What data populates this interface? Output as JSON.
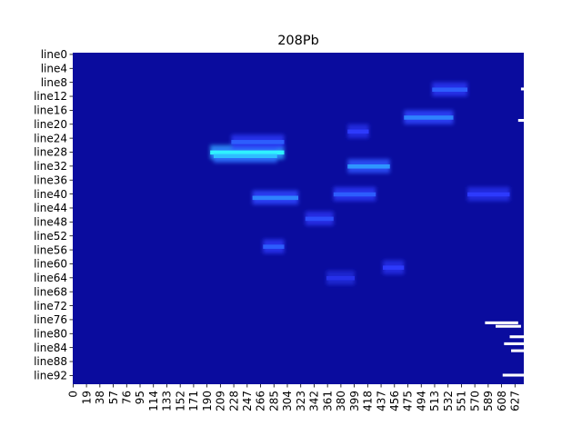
{
  "chart_data": {
    "type": "heatmap",
    "title": "208Pb",
    "xlabel": "",
    "ylabel": "",
    "colors": {
      "background": "#0a0c9e",
      "low": "#0a0c9e",
      "mid": "#2f3cff",
      "high": "#30ffff",
      "missing": "#ffffff"
    },
    "columns": 640,
    "rows": 95,
    "xlim": [
      0,
      640
    ],
    "ylim": [
      0,
      95
    ],
    "x_tick_labels": [
      "0",
      "19",
      "38",
      "57",
      "76",
      "95",
      "114",
      "133",
      "152",
      "171",
      "190",
      "209",
      "228",
      "247",
      "266",
      "285",
      "304",
      "323",
      "342",
      "361",
      "380",
      "399",
      "418",
      "437",
      "456",
      "475",
      "494",
      "513",
      "532",
      "551",
      "570",
      "589",
      "608",
      "627"
    ],
    "y_tick_labels": [
      "line0",
      "line4",
      "line8",
      "line12",
      "line16",
      "line20",
      "line24",
      "line28",
      "line32",
      "line36",
      "line40",
      "line44",
      "line48",
      "line52",
      "line56",
      "line60",
      "line64",
      "line68",
      "line72",
      "line76",
      "line80",
      "line84",
      "line88",
      "line92"
    ],
    "intensity_regions": [
      {
        "line": 28,
        "x": [
          195,
          300
        ],
        "intensity": 1.0
      },
      {
        "line": 29,
        "x": [
          200,
          290
        ],
        "intensity": 0.85
      },
      {
        "line": 25,
        "x": [
          225,
          300
        ],
        "intensity": 0.6
      },
      {
        "line": 41,
        "x": [
          255,
          320
        ],
        "intensity": 0.7
      },
      {
        "line": 32,
        "x": [
          390,
          450
        ],
        "intensity": 0.75
      },
      {
        "line": 18,
        "x": [
          470,
          540
        ],
        "intensity": 0.7
      },
      {
        "line": 10,
        "x": [
          510,
          560
        ],
        "intensity": 0.6
      },
      {
        "line": 47,
        "x": [
          330,
          370
        ],
        "intensity": 0.55
      },
      {
        "line": 40,
        "x": [
          370,
          430
        ],
        "intensity": 0.6
      },
      {
        "line": 40,
        "x": [
          560,
          620
        ],
        "intensity": 0.5
      },
      {
        "line": 61,
        "x": [
          440,
          470
        ],
        "intensity": 0.5
      },
      {
        "line": 55,
        "x": [
          270,
          300
        ],
        "intensity": 0.6
      },
      {
        "line": 64,
        "x": [
          360,
          400
        ],
        "intensity": 0.4
      },
      {
        "line": 22,
        "x": [
          390,
          420
        ],
        "intensity": 0.5
      }
    ],
    "missing_segments": [
      {
        "line": 10,
        "x": [
          636,
          640
        ]
      },
      {
        "line": 19,
        "x": [
          632,
          640
        ]
      },
      {
        "line": 77,
        "x": [
          585,
          632
        ]
      },
      {
        "line": 78,
        "x": [
          600,
          636
        ]
      },
      {
        "line": 81,
        "x": [
          620,
          640
        ]
      },
      {
        "line": 83,
        "x": [
          612,
          640
        ]
      },
      {
        "line": 85,
        "x": [
          622,
          640
        ]
      },
      {
        "line": 92,
        "x": [
          610,
          640
        ]
      }
    ]
  }
}
